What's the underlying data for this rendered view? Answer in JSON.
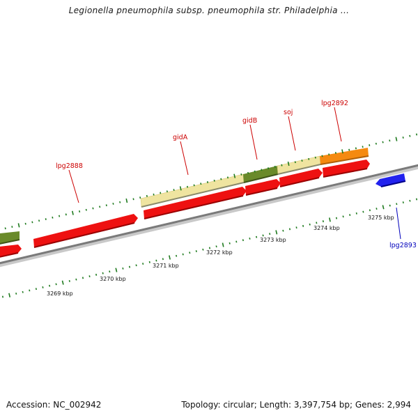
{
  "title": "Legionella pneumophila subsp. pneumophila str. Philadelphia ...",
  "footer": {
    "accession": "Accession: NC_002942",
    "summary": "Topology: circular; Length: 3,397,754 bp; Genes: 2,994"
  },
  "colors": {
    "backbone": "#7a7a7a",
    "tick": "#1e7a1e",
    "forward_label": "#cc0000",
    "reverse_label": "#0000bb",
    "cds_red": "#ee1111",
    "cds_blue": "#2222ee",
    "rrna_yellow": "#efe4a0",
    "olive": "#6a8a2a",
    "orange": "#f58a10"
  },
  "axis": {
    "unit": "kbp",
    "ticks": [
      {
        "kbp": 3269,
        "label": "3269 kbp"
      },
      {
        "kbp": 3270,
        "label": "3270 kbp"
      },
      {
        "kbp": 3271,
        "label": "3271 kbp"
      },
      {
        "kbp": 3272,
        "label": "3272 kbp"
      },
      {
        "kbp": 3273,
        "label": "3273 kbp"
      },
      {
        "kbp": 3274,
        "label": "3274 kbp"
      },
      {
        "kbp": 3275,
        "label": "3275 kbp"
      }
    ]
  },
  "gene_labels": [
    {
      "name": "lpg2888",
      "strand": "forward"
    },
    {
      "name": "gidA",
      "strand": "forward"
    },
    {
      "name": "gidB",
      "strand": "forward"
    },
    {
      "name": "soj",
      "strand": "forward"
    },
    {
      "name": "lpg2892",
      "strand": "forward"
    },
    {
      "name": "lpg2893",
      "strand": "reverse"
    }
  ]
}
